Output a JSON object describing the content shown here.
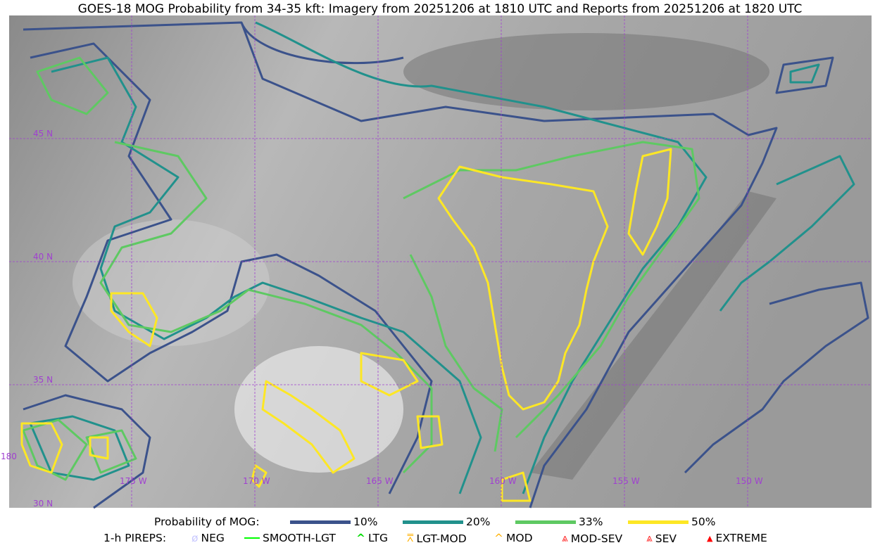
{
  "title": "GOES-18 MOG Probability from 34-35 kft: Imagery from 20251206 at 1810 UTC and Reports from 20251206 at 1820 UTC",
  "map": {
    "lon_labels": [
      "180",
      "175 W",
      "170 W",
      "165 W",
      "160 W",
      "155 W",
      "150 W"
    ],
    "lat_labels": [
      "45 N",
      "40 N",
      "35 N",
      "30 N"
    ],
    "gridline_color": "#a040d0"
  },
  "legend": {
    "probability_title": "Probability of MOG:",
    "probability_levels": [
      {
        "label": "10%",
        "color": "#3b528b"
      },
      {
        "label": "20%",
        "color": "#21918c"
      },
      {
        "label": "33%",
        "color": "#5ec962"
      },
      {
        "label": "50%",
        "color": "#fde725"
      }
    ],
    "pireps_title": "1-h PIREPS:",
    "pireps": [
      {
        "label": "NEG",
        "icon": "neg-circle-icon",
        "color": "#c8c8ff"
      },
      {
        "label": "SMOOTH-LGT",
        "icon": "line-icon",
        "color": "#00ff00"
      },
      {
        "label": "LTG",
        "icon": "caret-icon",
        "color": "#00dd00"
      },
      {
        "label": "LGT-MOD",
        "icon": "caret-bar-icon",
        "color": "#ffb000"
      },
      {
        "label": "MOD",
        "icon": "caret-icon",
        "color": "#ffb000"
      },
      {
        "label": "MOD-SEV",
        "icon": "double-caret-bar-icon",
        "color": "#ff2020"
      },
      {
        "label": "SEV",
        "icon": "double-caret-icon",
        "color": "#ff2020"
      },
      {
        "label": "EXTREME",
        "icon": "filled-triangle-icon",
        "color": "#ff0000"
      }
    ]
  }
}
